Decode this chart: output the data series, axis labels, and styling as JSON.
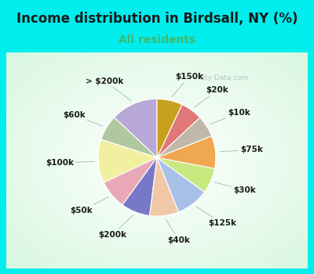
{
  "title": "Income distribution in Birdsall, NY (%)",
  "subtitle": "All residents",
  "title_color": "#1a1a1a",
  "subtitle_color": "#3dba6e",
  "background_outer": "#00eeee",
  "watermark": "City-Data.com",
  "labels": [
    "> $200k",
    "$60k",
    "$100k",
    "$50k",
    "$200k",
    "$40k",
    "$125k",
    "$30k",
    "$75k",
    "$10k",
    "$20k",
    "$150k"
  ],
  "values": [
    13,
    7,
    12,
    8,
    8,
    8,
    9,
    7,
    9,
    6,
    6,
    7
  ],
  "colors": [
    "#b8a8d8",
    "#b0c8a0",
    "#f0f0a0",
    "#e8a8b8",
    "#7878c8",
    "#f0c8a8",
    "#a8c0e8",
    "#c8e880",
    "#f0a850",
    "#c0b8a8",
    "#e07878",
    "#c8a020"
  ],
  "start_angle": 90,
  "label_fontsize": 7.5,
  "title_fontsize": 12,
  "subtitle_fontsize": 10
}
